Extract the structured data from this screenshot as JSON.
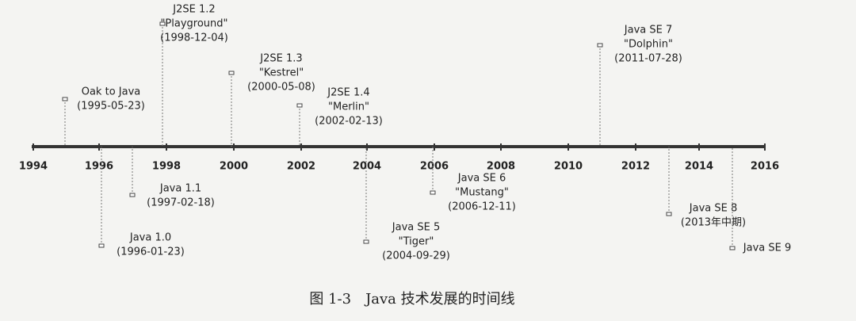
{
  "timeline": {
    "ticks": [
      "1994",
      "1996",
      "1998",
      "2000",
      "2002",
      "2004",
      "2006",
      "2008",
      "2010",
      "2012",
      "2014",
      "2016"
    ],
    "events": [
      {
        "lines": [
          "Oak to Java",
          "(1995-05-23)"
        ]
      },
      {
        "lines": [
          "J2SE 1.2",
          "\"Playground\"",
          "(1998-12-04)"
        ]
      },
      {
        "lines": [
          "J2SE 1.3",
          "\"Kestrel\"",
          "(2000-05-08)"
        ]
      },
      {
        "lines": [
          "J2SE 1.4",
          "\"Merlin\"",
          "(2002-02-13)"
        ]
      },
      {
        "lines": [
          "Java SE 7",
          "\"Dolphin\"",
          "(2011-07-28)"
        ]
      },
      {
        "lines": [
          "Java 1.0",
          "(1996-01-23)"
        ]
      },
      {
        "lines": [
          "Java 1.1",
          "(1997-02-18)"
        ]
      },
      {
        "lines": [
          "Java SE 5",
          "\"Tiger\"",
          "(2004-09-29)"
        ]
      },
      {
        "lines": [
          "Java SE 6",
          "\"Mustang\"",
          "(2006-12-11)"
        ]
      },
      {
        "lines": [
          "Java SE 8",
          "(2013年中期)"
        ]
      },
      {
        "lines": [
          "Java SE 9"
        ]
      }
    ]
  },
  "caption": "图 1-3　Java 技术发展的时间线"
}
